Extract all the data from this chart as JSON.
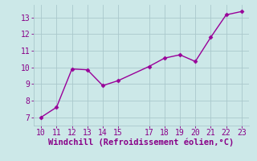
{
  "x": [
    10,
    11,
    12,
    13,
    14,
    15,
    17,
    18,
    19,
    20,
    21,
    22,
    23
  ],
  "y": [
    7.0,
    7.6,
    9.9,
    9.85,
    8.9,
    9.2,
    10.05,
    10.55,
    10.75,
    10.35,
    11.8,
    13.15,
    13.35
  ],
  "line_color": "#990099",
  "marker": "D",
  "marker_size": 2.5,
  "background_color": "#cce8e8",
  "grid_color": "#aac8cc",
  "xlabel": "Windchill (Refroidissement éolien,°C)",
  "xlabel_color": "#880088",
  "tick_color": "#880088",
  "xlim": [
    9.5,
    23.5
  ],
  "ylim": [
    6.5,
    13.75
  ],
  "xticks": [
    10,
    11,
    12,
    13,
    14,
    15,
    17,
    18,
    19,
    20,
    21,
    22,
    23
  ],
  "yticks": [
    7,
    8,
    9,
    10,
    11,
    12,
    13
  ],
  "tick_fontsize": 7,
  "xlabel_fontsize": 7.5,
  "linewidth": 1.0
}
